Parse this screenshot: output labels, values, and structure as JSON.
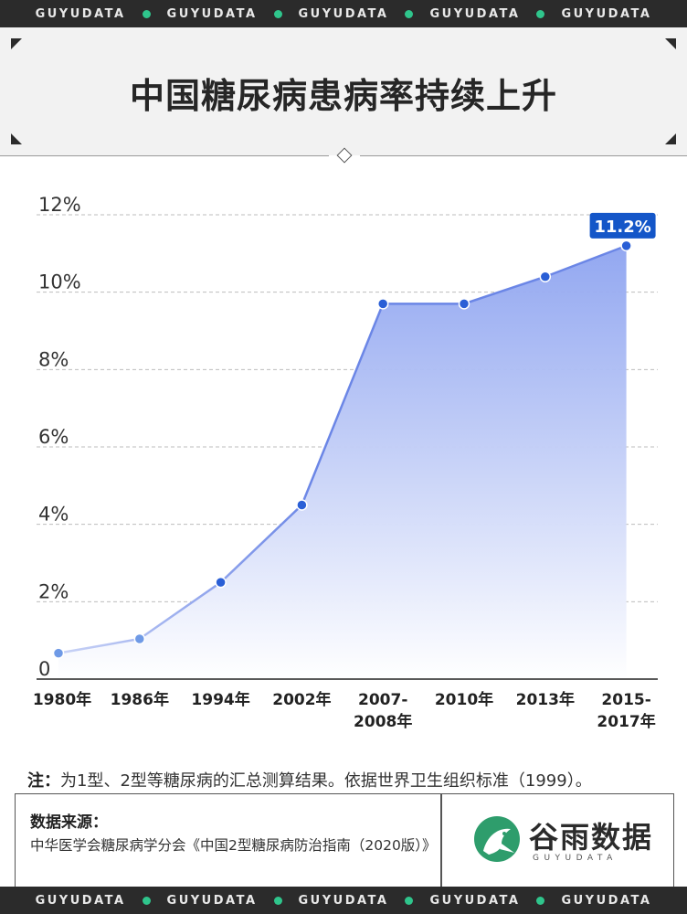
{
  "ticker_text": "GUYUDATA",
  "title": "中国糖尿病患病率持续上升",
  "chart_data": {
    "type": "area",
    "title": "中国糖尿病患病率持续上升",
    "categories": [
      "1980年",
      "1986年",
      "1994年",
      "2002年",
      "2007-\n2008年",
      "2010年",
      "2013年",
      "2015-\n2017年"
    ],
    "values": [
      0.67,
      1.04,
      2.5,
      4.5,
      9.7,
      9.7,
      10.4,
      11.2
    ],
    "y_ticks": [
      "0",
      "2%",
      "4%",
      "6%",
      "8%",
      "10%",
      "12%"
    ],
    "ylim": [
      0,
      12
    ],
    "highlight_label": "11.2%",
    "grid": true,
    "colors": {
      "line": "#6b86e6",
      "fill_top": "#8da3f0",
      "fill_bottom": "#ffffff",
      "highlight": "#1456c8",
      "point": "#2a5fd6"
    }
  },
  "note": {
    "label": "注：",
    "text": "为1型、2型等糖尿病的汇总测算结果。依据世界卫生组织标准（1999）。"
  },
  "source": {
    "label": "数据来源：",
    "text": "中华医学会糖尿病学分会《中国2型糖尿病防治指南（2020版）》"
  },
  "brand": {
    "name": "谷雨数据",
    "sub": "GUYUDATA",
    "accent": "#2e9d6c"
  }
}
